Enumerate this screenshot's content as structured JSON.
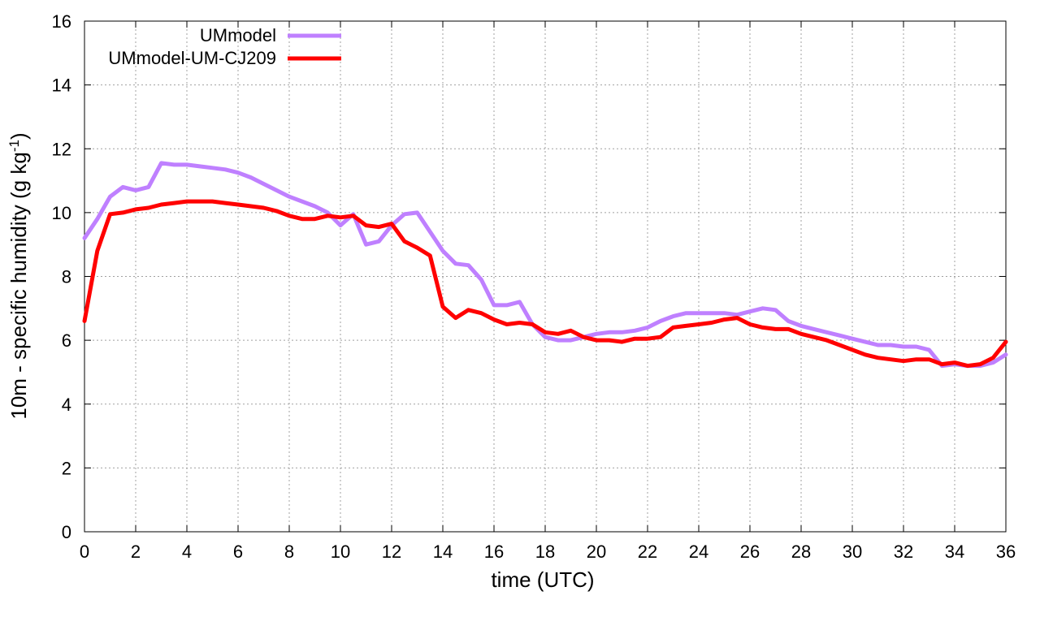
{
  "chart_data": {
    "type": "line",
    "xlabel": "time (UTC)",
    "ylabel_main": "10m - specific humidity (g kg",
    "ylabel_sup": "-1",
    "ylabel_end": ")",
    "xlim": [
      0,
      36
    ],
    "ylim": [
      0,
      16
    ],
    "xticks": [
      0,
      2,
      4,
      6,
      8,
      10,
      12,
      14,
      16,
      18,
      20,
      22,
      24,
      26,
      28,
      30,
      32,
      34,
      36
    ],
    "yticks": [
      0,
      2,
      4,
      6,
      8,
      10,
      12,
      14,
      16
    ],
    "grid": true,
    "legend_position": "top-left",
    "series": [
      {
        "name": "UMmodel",
        "color": "#bf80ff",
        "x": [
          0,
          0.5,
          1,
          1.5,
          2,
          2.5,
          3,
          3.5,
          4,
          4.5,
          5,
          5.5,
          6,
          6.5,
          7,
          7.5,
          8,
          8.5,
          9,
          9.5,
          10,
          10.5,
          11,
          11.5,
          12,
          12.5,
          13,
          13.5,
          14,
          14.5,
          15,
          15.5,
          16,
          16.5,
          17,
          17.5,
          18,
          18.5,
          19,
          19.5,
          20,
          20.5,
          21,
          21.5,
          22,
          22.5,
          23,
          23.5,
          24,
          24.5,
          25,
          25.5,
          26,
          26.5,
          27,
          27.5,
          28,
          28.5,
          29,
          29.5,
          30,
          30.5,
          31,
          31.5,
          32,
          32.5,
          33,
          33.5,
          34,
          34.5,
          35,
          35.5,
          36
        ],
        "y": [
          9.2,
          9.8,
          10.5,
          10.8,
          10.7,
          10.8,
          11.55,
          11.5,
          11.5,
          11.45,
          11.4,
          11.35,
          11.25,
          11.1,
          10.9,
          10.7,
          10.5,
          10.35,
          10.2,
          10.0,
          9.6,
          9.95,
          9.0,
          9.1,
          9.6,
          9.95,
          10.0,
          9.4,
          8.8,
          8.4,
          8.35,
          7.9,
          7.1,
          7.1,
          7.2,
          6.5,
          6.1,
          6.0,
          6.0,
          6.1,
          6.2,
          6.25,
          6.25,
          6.3,
          6.4,
          6.6,
          6.75,
          6.85,
          6.85,
          6.85,
          6.85,
          6.8,
          6.9,
          7.0,
          6.95,
          6.6,
          6.45,
          6.35,
          6.25,
          6.15,
          6.05,
          5.95,
          5.85,
          5.85,
          5.8,
          5.8,
          5.7,
          5.2,
          5.25,
          5.2,
          5.2,
          5.3,
          5.55
        ]
      },
      {
        "name": "UMmodel-UM-CJ209",
        "color": "#ff0000",
        "x": [
          0,
          0.5,
          1,
          1.5,
          2,
          2.5,
          3,
          3.5,
          4,
          4.5,
          5,
          5.5,
          6,
          6.5,
          7,
          7.5,
          8,
          8.5,
          9,
          9.5,
          10,
          10.5,
          11,
          11.5,
          12,
          12.5,
          13,
          13.5,
          14,
          14.5,
          15,
          15.5,
          16,
          16.5,
          17,
          17.5,
          18,
          18.5,
          19,
          19.5,
          20,
          20.5,
          21,
          21.5,
          22,
          22.5,
          23,
          23.5,
          24,
          24.5,
          25,
          25.5,
          26,
          26.5,
          27,
          27.5,
          28,
          28.5,
          29,
          29.5,
          30,
          30.5,
          31,
          31.5,
          32,
          32.5,
          33,
          33.5,
          34,
          34.5,
          35,
          35.5,
          36
        ],
        "y": [
          6.6,
          8.8,
          9.95,
          10.0,
          10.1,
          10.15,
          10.25,
          10.3,
          10.35,
          10.35,
          10.35,
          10.3,
          10.25,
          10.2,
          10.15,
          10.05,
          9.9,
          9.8,
          9.8,
          9.9,
          9.85,
          9.9,
          9.6,
          9.55,
          9.65,
          9.1,
          8.9,
          8.65,
          7.05,
          6.7,
          6.95,
          6.85,
          6.65,
          6.5,
          6.55,
          6.5,
          6.25,
          6.2,
          6.3,
          6.1,
          6.0,
          6.0,
          5.95,
          6.05,
          6.05,
          6.1,
          6.4,
          6.45,
          6.5,
          6.55,
          6.65,
          6.7,
          6.5,
          6.4,
          6.35,
          6.35,
          6.2,
          6.1,
          6.0,
          5.85,
          5.7,
          5.55,
          5.45,
          5.4,
          5.35,
          5.4,
          5.4,
          5.25,
          5.3,
          5.2,
          5.25,
          5.45,
          5.95
        ]
      }
    ]
  }
}
